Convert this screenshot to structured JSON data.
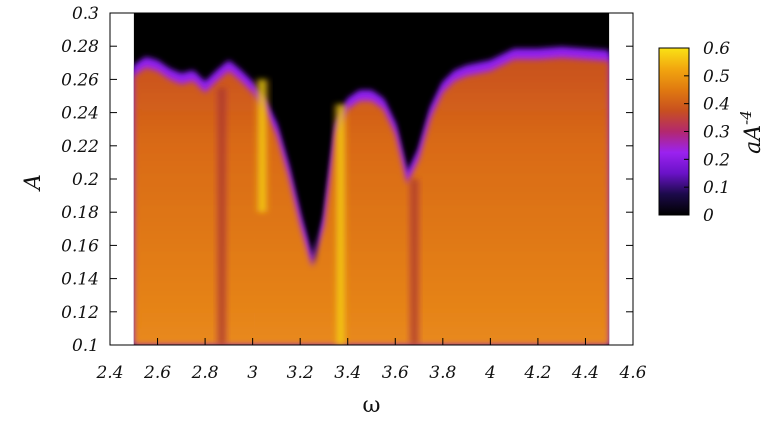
{
  "chart_data": {
    "type": "heatmap",
    "title": "",
    "xlabel": "ω",
    "ylabel": "A",
    "xlim": [
      2.4,
      4.6
    ],
    "ylim": [
      0.1,
      0.3
    ],
    "data_extent": {
      "x": [
        2.5,
        4.5
      ],
      "y": [
        0.1,
        0.3
      ]
    },
    "x_ticks": [
      "2.4",
      "2.6",
      "2.8",
      "3",
      "3.2",
      "3.4",
      "3.6",
      "3.8",
      "4",
      "4.2",
      "4.4",
      "4.6"
    ],
    "y_ticks": [
      "0.1",
      "0.12",
      "0.14",
      "0.16",
      "0.18",
      "0.2",
      "0.22",
      "0.24",
      "0.26",
      "0.28",
      "0.3"
    ],
    "colorbar": {
      "label": "aA",
      "label_sup": "-4",
      "range": [
        0,
        0.6
      ],
      "ticks": [
        "0",
        "0.1",
        "0.2",
        "0.3",
        "0.4",
        "0.5",
        "0.6"
      ],
      "colormap": [
        "#000000",
        "#1c0a4a",
        "#6a12c8",
        "#9b22f0",
        "#b3286e",
        "#c8501f",
        "#e07a10",
        "#f2a60f",
        "#fae215"
      ]
    },
    "series": [
      {
        "name": "",
        "boundary": [
          [
            2.5,
            0.265
          ],
          [
            2.55,
            0.27
          ],
          [
            2.6,
            0.268
          ],
          [
            2.65,
            0.263
          ],
          [
            2.7,
            0.26
          ],
          [
            2.75,
            0.262
          ],
          [
            2.8,
            0.255
          ],
          [
            2.85,
            0.262
          ],
          [
            2.9,
            0.268
          ],
          [
            2.95,
            0.262
          ],
          [
            3.0,
            0.255
          ],
          [
            3.05,
            0.245
          ],
          [
            3.1,
            0.23
          ],
          [
            3.15,
            0.205
          ],
          [
            3.2,
            0.175
          ],
          [
            3.25,
            0.15
          ],
          [
            3.3,
            0.175
          ],
          [
            3.35,
            0.23
          ],
          [
            3.4,
            0.245
          ],
          [
            3.45,
            0.25
          ],
          [
            3.5,
            0.25
          ],
          [
            3.55,
            0.245
          ],
          [
            3.6,
            0.23
          ],
          [
            3.65,
            0.2
          ],
          [
            3.7,
            0.215
          ],
          [
            3.75,
            0.24
          ],
          [
            3.8,
            0.255
          ],
          [
            3.85,
            0.262
          ],
          [
            3.9,
            0.265
          ],
          [
            4.0,
            0.268
          ],
          [
            4.1,
            0.275
          ],
          [
            4.2,
            0.275
          ],
          [
            4.3,
            0.276
          ],
          [
            4.4,
            0.275
          ],
          [
            4.5,
            0.274
          ]
        ],
        "ridges": [
          {
            "x": 2.87,
            "y_range": [
              0.1,
              0.255
            ],
            "value": 0.32
          },
          {
            "x": 3.04,
            "y_range": [
              0.18,
              0.26
            ],
            "value": 0.58
          },
          {
            "x": 3.37,
            "y_range": [
              0.1,
              0.245
            ],
            "value": 0.6
          },
          {
            "x": 3.68,
            "y_range": [
              0.1,
              0.2
            ],
            "value": 0.35
          }
        ]
      }
    ]
  }
}
